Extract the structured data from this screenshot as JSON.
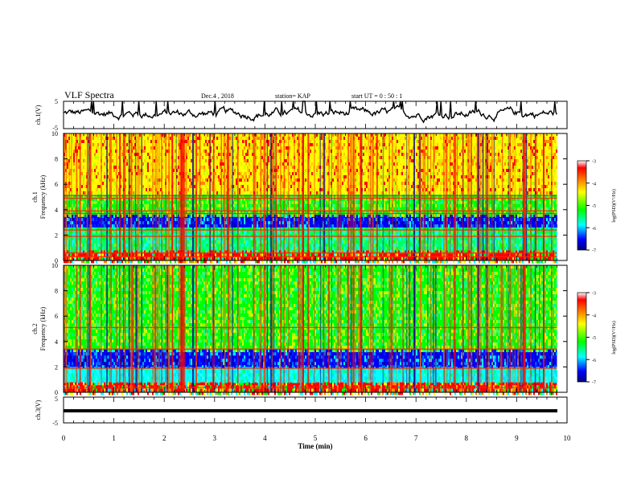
{
  "header": {
    "title": "VLF Spectra",
    "date": "Dec.4  , 2018",
    "station": "station= KAP",
    "start_ut": "start  UT  =   0 : 50 : 1"
  },
  "panels": {
    "ch1_line_label": "ch.1(V)",
    "ch1_spec_label": "ch.1",
    "ch2_spec_label": "ch.2",
    "spec_ylabel": "Frequency  (kHz)",
    "ch3_line_label": "ch.3(V)",
    "line_yticks": [
      "5",
      "-5"
    ],
    "freq_yticks": [
      "0",
      "2",
      "4",
      "6",
      "8",
      "10"
    ]
  },
  "colorbar": {
    "label": "log(PSD)(V²/Hz)",
    "ticks": [
      "-3",
      "-4",
      "-5",
      "-6",
      "-7"
    ],
    "colors": {
      "high": "#ff0000",
      "mid_high": "#ffff00",
      "mid": "#00ff00",
      "mid_low": "#00ffff",
      "low": "#0000ff",
      "floor": "#000080"
    }
  },
  "chart_data": {
    "type": "heatmap",
    "xlabel": "Time  (min)",
    "x_ticks": [
      "0",
      "1",
      "2",
      "3",
      "4",
      "5",
      "6",
      "7",
      "8",
      "9",
      "10"
    ],
    "xlim": [
      0,
      10
    ],
    "data_extent_min": 9.8,
    "series": [
      {
        "name": "ch.1(V)",
        "kind": "line",
        "ylim": [
          -5,
          5
        ],
        "mean": 0.5,
        "amplitude": 3
      },
      {
        "name": "ch.1",
        "kind": "spectrogram",
        "ylim_khz": [
          0,
          10
        ],
        "zlim": [
          -7,
          -3
        ],
        "dominant_level": -4.5,
        "bands": [
          {
            "from_khz": 0,
            "to_khz": 0.8,
            "level": "mixed"
          },
          {
            "from_khz": 0.8,
            "to_khz": 2.6,
            "level": "green-cyan"
          },
          {
            "from_khz": 2.6,
            "to_khz": 3.6,
            "level": "blue"
          },
          {
            "from_khz": 3.6,
            "to_khz": 5.2,
            "level": "green"
          },
          {
            "from_khz": 5.2,
            "to_khz": 10,
            "level": "yellow-red"
          }
        ],
        "lines_khz": [
          0.3,
          0.6,
          1.9,
          2.4,
          3.7,
          3.9,
          4.9,
          5.1
        ]
      },
      {
        "name": "ch.2",
        "kind": "spectrogram",
        "ylim_khz": [
          0,
          10
        ],
        "zlim": [
          -7,
          -3
        ],
        "dominant_level": -5.2,
        "bands": [
          {
            "from_khz": 0,
            "to_khz": 0.8,
            "level": "mixed"
          },
          {
            "from_khz": 0.8,
            "to_khz": 2.0,
            "level": "cyan"
          },
          {
            "from_khz": 2.0,
            "to_khz": 3.4,
            "level": "blue"
          },
          {
            "from_khz": 3.4,
            "to_khz": 10,
            "level": "green"
          }
        ],
        "lines_khz": [
          0.4,
          1.9,
          3.4,
          5.1
        ]
      },
      {
        "name": "ch.3(V)",
        "kind": "line",
        "ylim": [
          -5,
          5
        ],
        "constant": -1.5
      }
    ]
  }
}
